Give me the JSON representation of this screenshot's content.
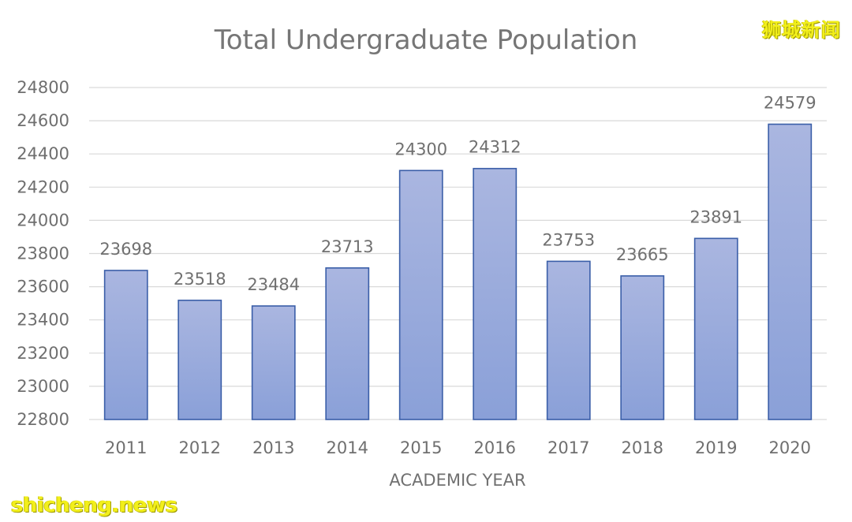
{
  "watermarks": {
    "top_right": "狮城新闻",
    "bottom_left": "shicheng.news"
  },
  "chart_data": {
    "type": "bar",
    "title": "Total Undergraduate Population",
    "xlabel": "ACADEMIC YEAR",
    "ylabel": "",
    "categories": [
      "2011",
      "2012",
      "2013",
      "2014",
      "2015",
      "2016",
      "2017",
      "2018",
      "2019",
      "2020"
    ],
    "values": [
      23698,
      23518,
      23484,
      23713,
      24300,
      24312,
      23753,
      23665,
      23891,
      24579
    ],
    "ylim": [
      22800,
      24800
    ],
    "yticks": [
      22800,
      23000,
      23200,
      23400,
      23600,
      23800,
      24000,
      24200,
      24400,
      24600,
      24800
    ],
    "grid": true,
    "legend": "none",
    "data_labels": true,
    "colors": {
      "bar_fill_top": "#aab6e0",
      "bar_fill_bottom": "#8aa0d8",
      "bar_stroke": "#3a5ea8",
      "grid": "#d9d9d9",
      "text": "#707070"
    }
  }
}
